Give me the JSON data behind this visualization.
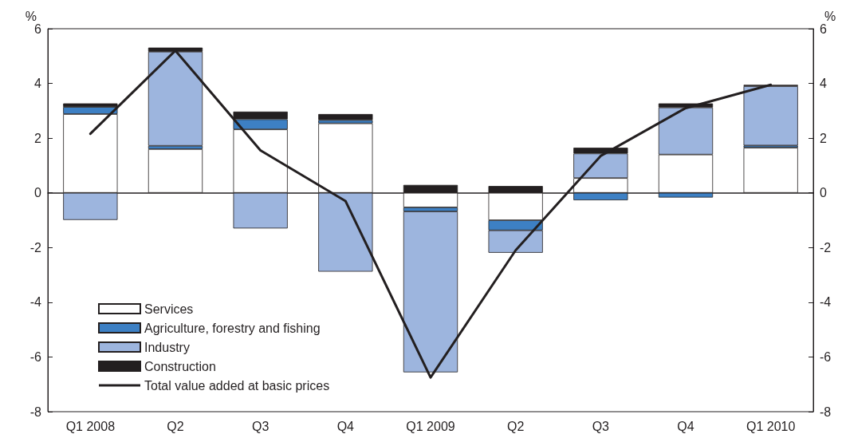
{
  "chart_data": {
    "type": "bar",
    "stacked": true,
    "ylabel": "%",
    "y2label": "%",
    "categories": [
      "Q1 2008",
      "Q2",
      "Q3",
      "Q4",
      "Q1 2009",
      "Q2",
      "Q3",
      "Q4",
      "Q1 2010"
    ],
    "series": [
      {
        "name": "Services",
        "color": "#ffffff",
        "values": [
          2.88,
          1.6,
          2.32,
          2.54,
          -0.53,
          -1.0,
          0.54,
          1.4,
          1.65
        ]
      },
      {
        "name": "Agriculture, forestry and fishing",
        "color": "#3d80c4",
        "values": [
          0.26,
          0.12,
          0.37,
          0.12,
          -0.15,
          -0.37,
          -0.27,
          -0.17,
          0.08
        ]
      },
      {
        "name": "Industry",
        "color": "#9db5de",
        "values": [
          -0.99,
          3.44,
          -1.3,
          -2.88,
          -5.88,
          -0.82,
          0.9,
          1.72,
          2.17
        ]
      },
      {
        "name": "Construction",
        "color": "#231f20",
        "values": [
          0.13,
          0.15,
          0.28,
          0.22,
          0.29,
          0.25,
          0.21,
          0.15,
          0.05
        ]
      },
      {
        "name": "Total value added at basic prices",
        "type": "line",
        "color": "#231f20",
        "values": [
          2.16,
          5.2,
          1.55,
          -0.3,
          -6.75,
          -2.1,
          1.35,
          3.1,
          3.95
        ]
      }
    ],
    "ylim": [
      -8,
      6
    ],
    "yticks": [
      -8,
      -6,
      -4,
      -2,
      0,
      2,
      4,
      6
    ],
    "y2lim": [
      -8,
      6
    ],
    "y2ticks": [
      -8,
      -6,
      -4,
      -2,
      0,
      2,
      4,
      6
    ],
    "legend": "bottom left",
    "marker": "none"
  }
}
